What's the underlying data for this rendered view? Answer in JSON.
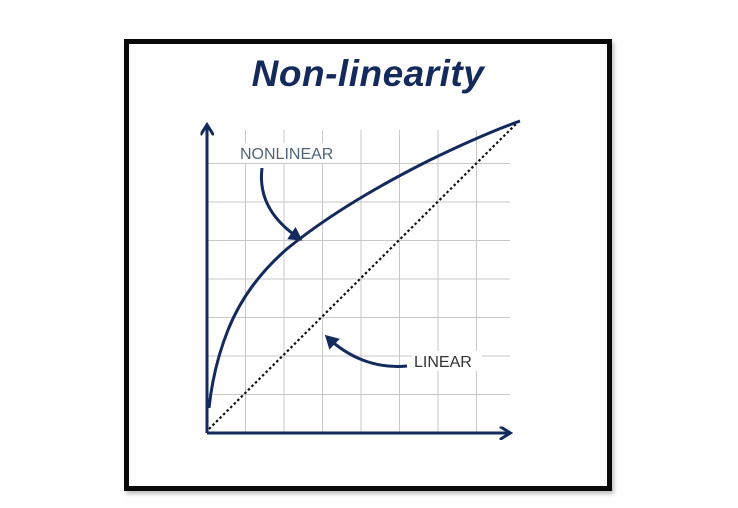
{
  "title": "Non-linearity",
  "labels": {
    "nonlinear": "NONLINEAR",
    "linear": "LINEAR"
  },
  "colors": {
    "curve": "#142a5c",
    "title": "#142a5c",
    "grid": "#c8c8c8",
    "dotted_line": "#111111",
    "nonlinear_label": "#4f6577",
    "linear_label": "#333333"
  },
  "icons": {
    "y_axis": "arrow-up",
    "x_axis": "arrow-right",
    "pointer_nonlinear": "curved-arrow-down-right",
    "pointer_linear": "curved-arrow-left"
  }
}
